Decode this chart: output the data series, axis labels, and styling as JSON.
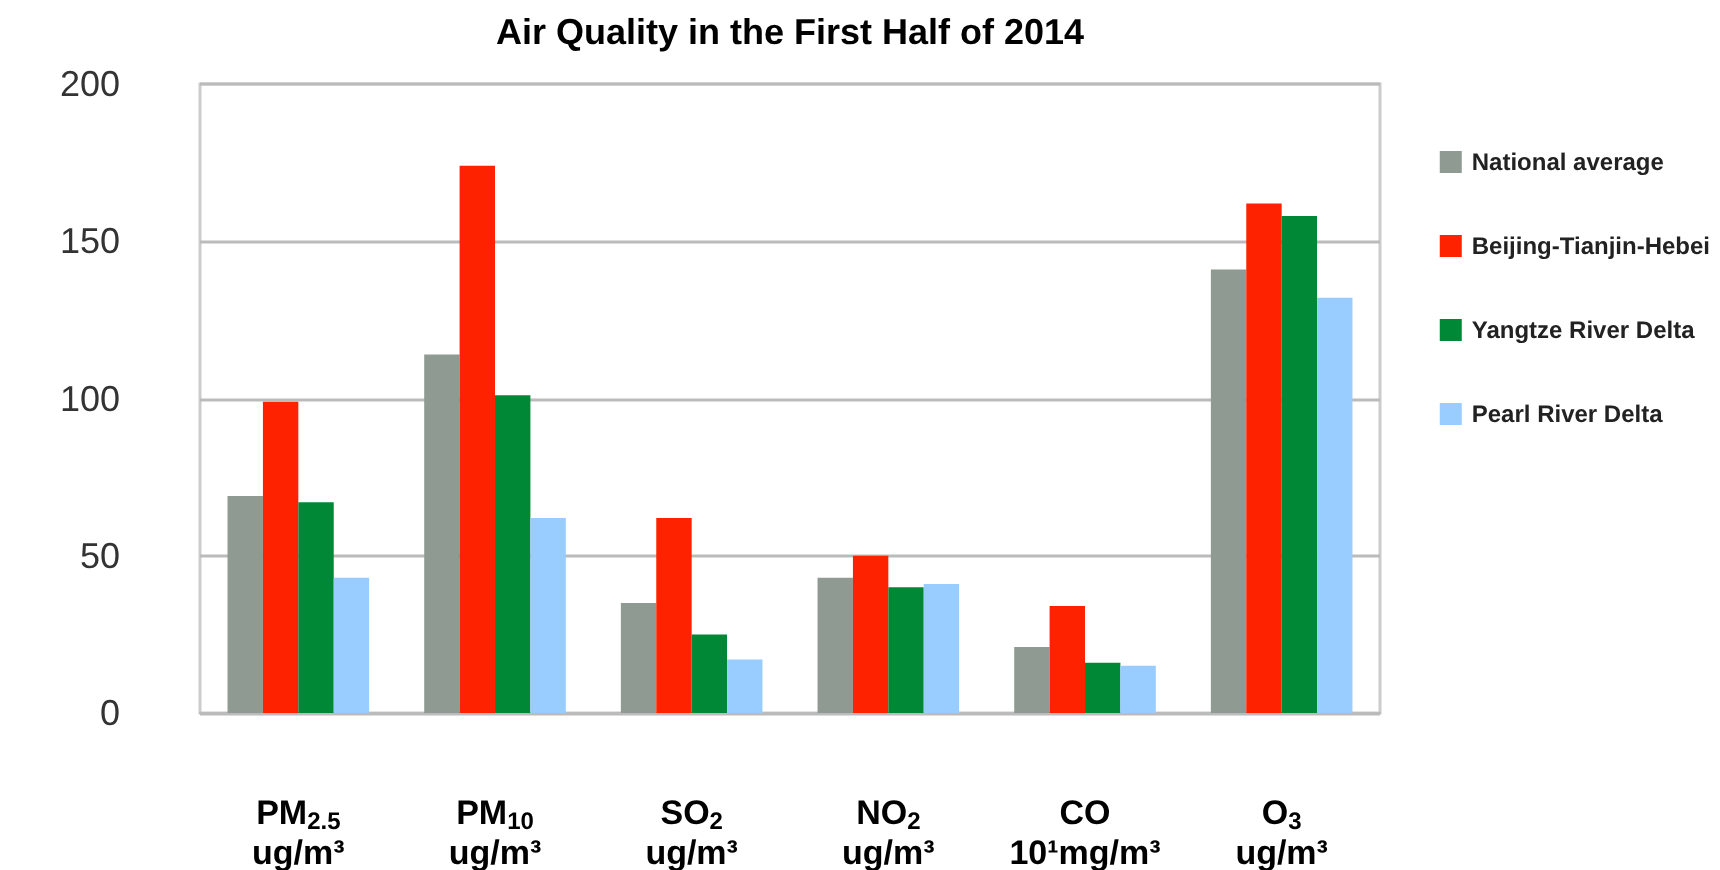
{
  "chart_data": {
    "type": "bar",
    "title": "Air Quality in the First Half of 2014",
    "categories": [
      "PM$_{2.5}$\nug/m³",
      "PM$_{10}$\nug/m³",
      "SO$_{2}$\nug/m³",
      "NO$_{2}$\nug/m³",
      "CO\n10¹mg/m³",
      "O$_{3}$\nug/m³"
    ],
    "series": [
      {
        "name": "National average",
        "color": "#8f9a93",
        "values": [
          69,
          114,
          35,
          43,
          21,
          141
        ]
      },
      {
        "name": "Beijing-Tianjin-Hebei",
        "color": "#ff2200",
        "values": [
          99,
          174,
          62,
          50,
          34,
          162
        ]
      },
      {
        "name": "Yangtze River Delta",
        "color": "#008837",
        "values": [
          67,
          101,
          25,
          40,
          16,
          158
        ]
      },
      {
        "name": "Pearl River Delta",
        "color": "#99ccff",
        "values": [
          43,
          62,
          17,
          41,
          15,
          132
        ]
      }
    ],
    "ylim": [
      0,
      200
    ],
    "yticks": [
      0,
      50,
      100,
      150,
      200
    ],
    "grid": "y",
    "legend": "right"
  }
}
